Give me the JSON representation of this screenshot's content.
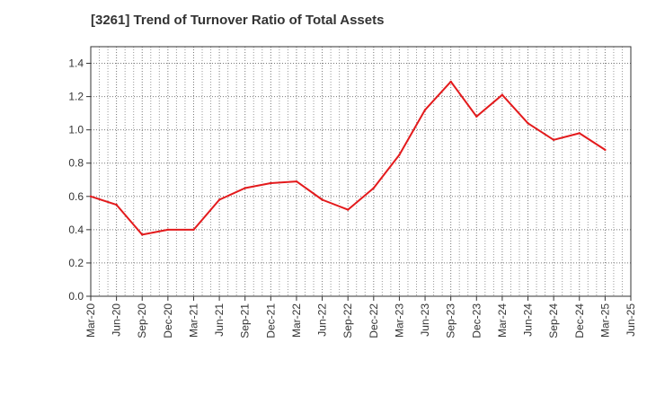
{
  "chart_data": {
    "type": "line",
    "title": "[3261]  Trend of Turnover Ratio of Total Assets",
    "xlabel": "",
    "ylabel": "",
    "x": [
      "Mar-20",
      "Jun-20",
      "Sep-20",
      "Dec-20",
      "Mar-21",
      "Jun-21",
      "Sep-21",
      "Dec-21",
      "Mar-22",
      "Jun-22",
      "Sep-22",
      "Dec-22",
      "Mar-23",
      "Jun-23",
      "Sep-23",
      "Dec-23",
      "Mar-24",
      "Jun-24",
      "Sep-24",
      "Dec-24",
      "Mar-25",
      "Jun-25"
    ],
    "series": [
      {
        "name": "",
        "color": "#e31a1c",
        "values": [
          0.6,
          0.55,
          0.37,
          0.4,
          0.4,
          0.58,
          0.65,
          0.68,
          0.69,
          0.58,
          0.52,
          0.65,
          0.85,
          1.12,
          1.29,
          1.08,
          1.21,
          1.04,
          0.94,
          0.98,
          0.88,
          null
        ]
      }
    ],
    "ylim": [
      0.0,
      1.5
    ],
    "yticks": [
      0.0,
      0.2,
      0.4,
      0.6,
      0.8,
      1.0,
      1.2,
      1.4
    ],
    "ytick_labels": [
      "0.0",
      "0.2",
      "0.4",
      "0.6",
      "0.8",
      "1.0",
      "1.2",
      "1.4"
    ],
    "grid": true,
    "legend": "none"
  }
}
